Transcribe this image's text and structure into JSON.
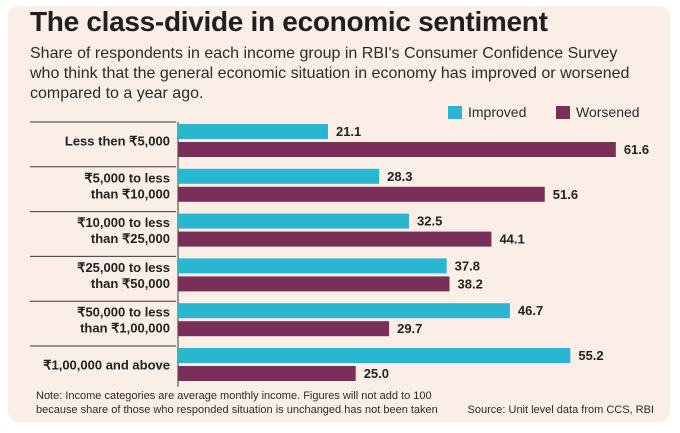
{
  "title": "The class-divide in economic sentiment",
  "subtitle": "Share of respondents in each income group in RBI's Consumer Confidence Survey who think that the general economic situation in economy has improved or worsened compared to a year ago.",
  "note": "Note: Income categories are average monthly income. Figures will not add to 100 because share of those who responded situation is unchanged has not been taken",
  "source": "Source: Unit level data from CCS, RBI",
  "colors": {
    "improved": "#29b6d0",
    "worsened": "#7a2f59",
    "background": "#fbeee6"
  },
  "chart_data": {
    "type": "bar",
    "orientation": "horizontal",
    "categories": [
      [
        "Less then ₹5,000"
      ],
      [
        "₹5,000 to less",
        "than ₹10,000"
      ],
      [
        "₹10,000 to less",
        "than ₹25,000"
      ],
      [
        "₹25,000 to less",
        "than ₹50,000"
      ],
      [
        "₹50,000 to less",
        "than ₹1,00,000"
      ],
      [
        "₹1,00,000 and above"
      ]
    ],
    "series": [
      {
        "name": "Improved",
        "values": [
          21.1,
          28.3,
          32.5,
          37.8,
          46.7,
          55.2
        ]
      },
      {
        "name": "Worsened",
        "values": [
          61.6,
          51.6,
          44.1,
          38.2,
          29.7,
          25.0
        ]
      }
    ],
    "value_labels": {
      "Improved": [
        "21.1",
        "28.3",
        "32.5",
        "37.8",
        "46.7",
        "55.2"
      ],
      "Worsened": [
        "61.6",
        "51.6",
        "44.1",
        "38.2",
        "29.7",
        "25.0"
      ]
    },
    "xlim": [
      0,
      65
    ],
    "grid": false,
    "legend": "top-right"
  }
}
